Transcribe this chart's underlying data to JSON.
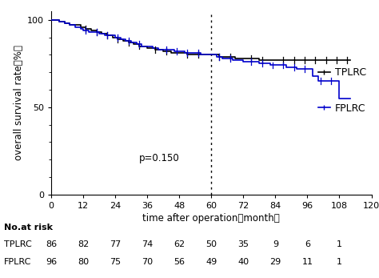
{
  "xlabel": "time after operation（month）",
  "ylabel": "overall survival rate（%）",
  "xlim": [
    0,
    120
  ],
  "ylim": [
    0,
    105
  ],
  "xticks": [
    0,
    12,
    24,
    36,
    48,
    60,
    72,
    84,
    96,
    108,
    120
  ],
  "yticks": [
    0,
    50,
    100
  ],
  "dotted_vline_x": 60,
  "pvalue_text": "p=0.150",
  "pvalue_x": 48,
  "pvalue_y": 18,
  "tplrc_color": "#000000",
  "fplrc_color": "#0000cc",
  "noatrisk_times": [
    0,
    12,
    24,
    36,
    48,
    60,
    72,
    84,
    96,
    108
  ],
  "tplrc_atrisk": [
    86,
    82,
    77,
    74,
    62,
    50,
    35,
    9,
    6,
    1
  ],
  "fplrc_atrisk": [
    96,
    80,
    75,
    70,
    56,
    49,
    40,
    29,
    11,
    1
  ],
  "TPLRC_times": [
    0,
    1,
    3,
    5,
    7,
    9,
    11,
    13,
    15,
    17,
    19,
    21,
    23,
    25,
    27,
    29,
    31,
    33,
    36,
    39,
    42,
    45,
    48,
    51,
    54,
    57,
    60,
    63,
    66,
    69,
    72,
    75,
    78,
    81,
    84,
    87,
    90,
    93,
    96,
    99,
    102,
    105,
    108,
    112
  ],
  "TPLRC_surv": [
    100,
    100,
    99,
    98,
    97,
    97,
    96,
    95,
    94,
    93,
    92,
    91,
    90,
    89,
    88,
    87,
    86,
    85,
    84,
    83,
    82,
    81,
    81,
    80,
    80,
    80,
    80,
    79,
    79,
    78,
    78,
    78,
    77,
    77,
    77,
    77,
    77,
    77,
    77,
    77,
    77,
    77,
    77,
    77
  ],
  "FPLRC_times": [
    0,
    1,
    3,
    5,
    7,
    9,
    11,
    12,
    14,
    16,
    18,
    20,
    22,
    24,
    26,
    28,
    30,
    32,
    34,
    36,
    38,
    40,
    42,
    44,
    46,
    48,
    50,
    52,
    54,
    56,
    58,
    60,
    62,
    64,
    66,
    68,
    70,
    72,
    74,
    76,
    78,
    80,
    82,
    84,
    86,
    88,
    90,
    92,
    94,
    96,
    98,
    100,
    102,
    104,
    106,
    108,
    112
  ],
  "FPLRC_surv": [
    100,
    100,
    99,
    98,
    97,
    96,
    95,
    94,
    93,
    93,
    92,
    91,
    91,
    90,
    89,
    88,
    87,
    86,
    85,
    85,
    84,
    83,
    83,
    83,
    82,
    82,
    81,
    81,
    81,
    80,
    80,
    80,
    79,
    78,
    78,
    77,
    77,
    76,
    76,
    76,
    75,
    75,
    74,
    74,
    74,
    73,
    73,
    72,
    72,
    72,
    68,
    65,
    65,
    65,
    65,
    55,
    55
  ],
  "TPLRC_censor_x": [
    13,
    17,
    21,
    25,
    29,
    33,
    39,
    43,
    51,
    55,
    63,
    67,
    75,
    79,
    87,
    91,
    95,
    99,
    103,
    107,
    111
  ],
  "FPLRC_censor_x": [
    13,
    17,
    21,
    25,
    29,
    33,
    43,
    47,
    51,
    55,
    63,
    67,
    75,
    79,
    83,
    87,
    91,
    95,
    101,
    105
  ]
}
